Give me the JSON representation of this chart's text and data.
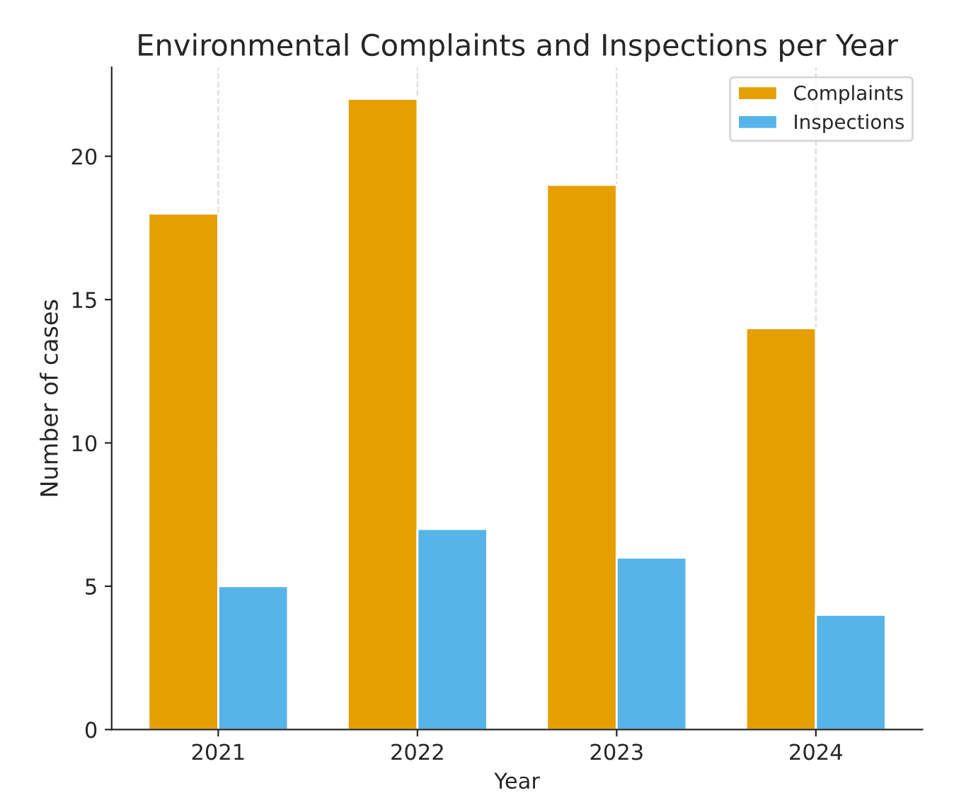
{
  "chart_data": {
    "type": "bar",
    "title": "Environmental Complaints and Inspections per Year",
    "xlabel": "Year",
    "ylabel": "Number of cases",
    "categories": [
      "2021",
      "2022",
      "2023",
      "2024"
    ],
    "series": [
      {
        "name": "Complaints",
        "color": "#e69f00",
        "values": [
          18,
          22,
          19,
          14
        ]
      },
      {
        "name": "Inspections",
        "color": "#56b4e9",
        "values": [
          5,
          7,
          6,
          4
        ]
      }
    ],
    "ylim": [
      0,
      23.1
    ],
    "yticks": [
      0,
      5,
      10,
      15,
      20
    ],
    "grid": "x",
    "legend": "top right"
  }
}
